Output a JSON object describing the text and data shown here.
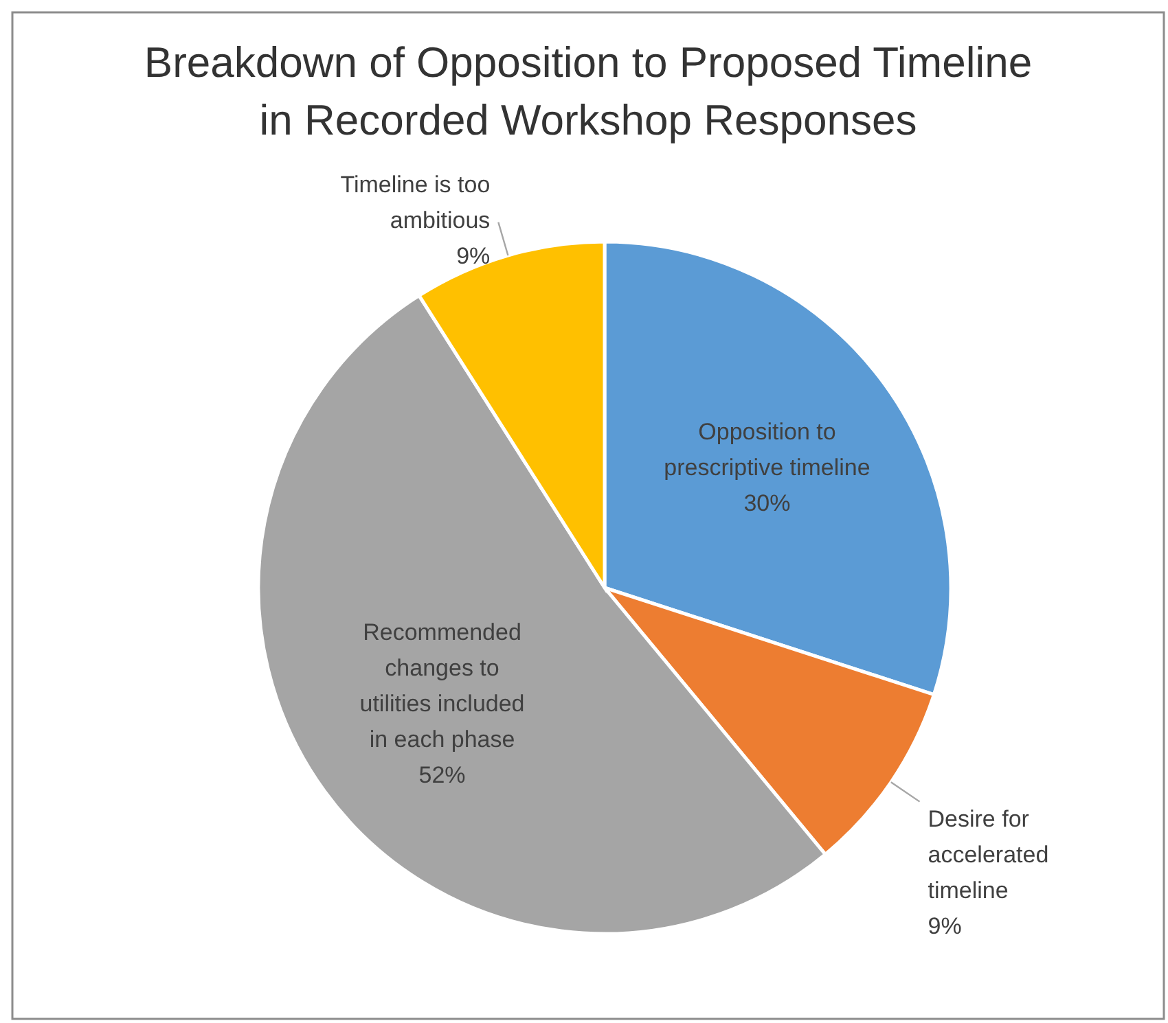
{
  "chart_data": {
    "type": "pie",
    "title": "Breakdown of Opposition to Proposed Timeline in Recorded Workshop Responses",
    "categories": [
      "Opposition to prescriptive timeline",
      "Desire for accelerated timeline",
      "Recommended changes to utilities included in each phase",
      "Timeline is too ambitious"
    ],
    "values": [
      30,
      9,
      52,
      9
    ],
    "value_labels": [
      "30%",
      "9%",
      "52%",
      "9%"
    ],
    "colors": [
      "#5b9bd5",
      "#ed7d31",
      "#a5a5a5",
      "#ffc000"
    ]
  }
}
